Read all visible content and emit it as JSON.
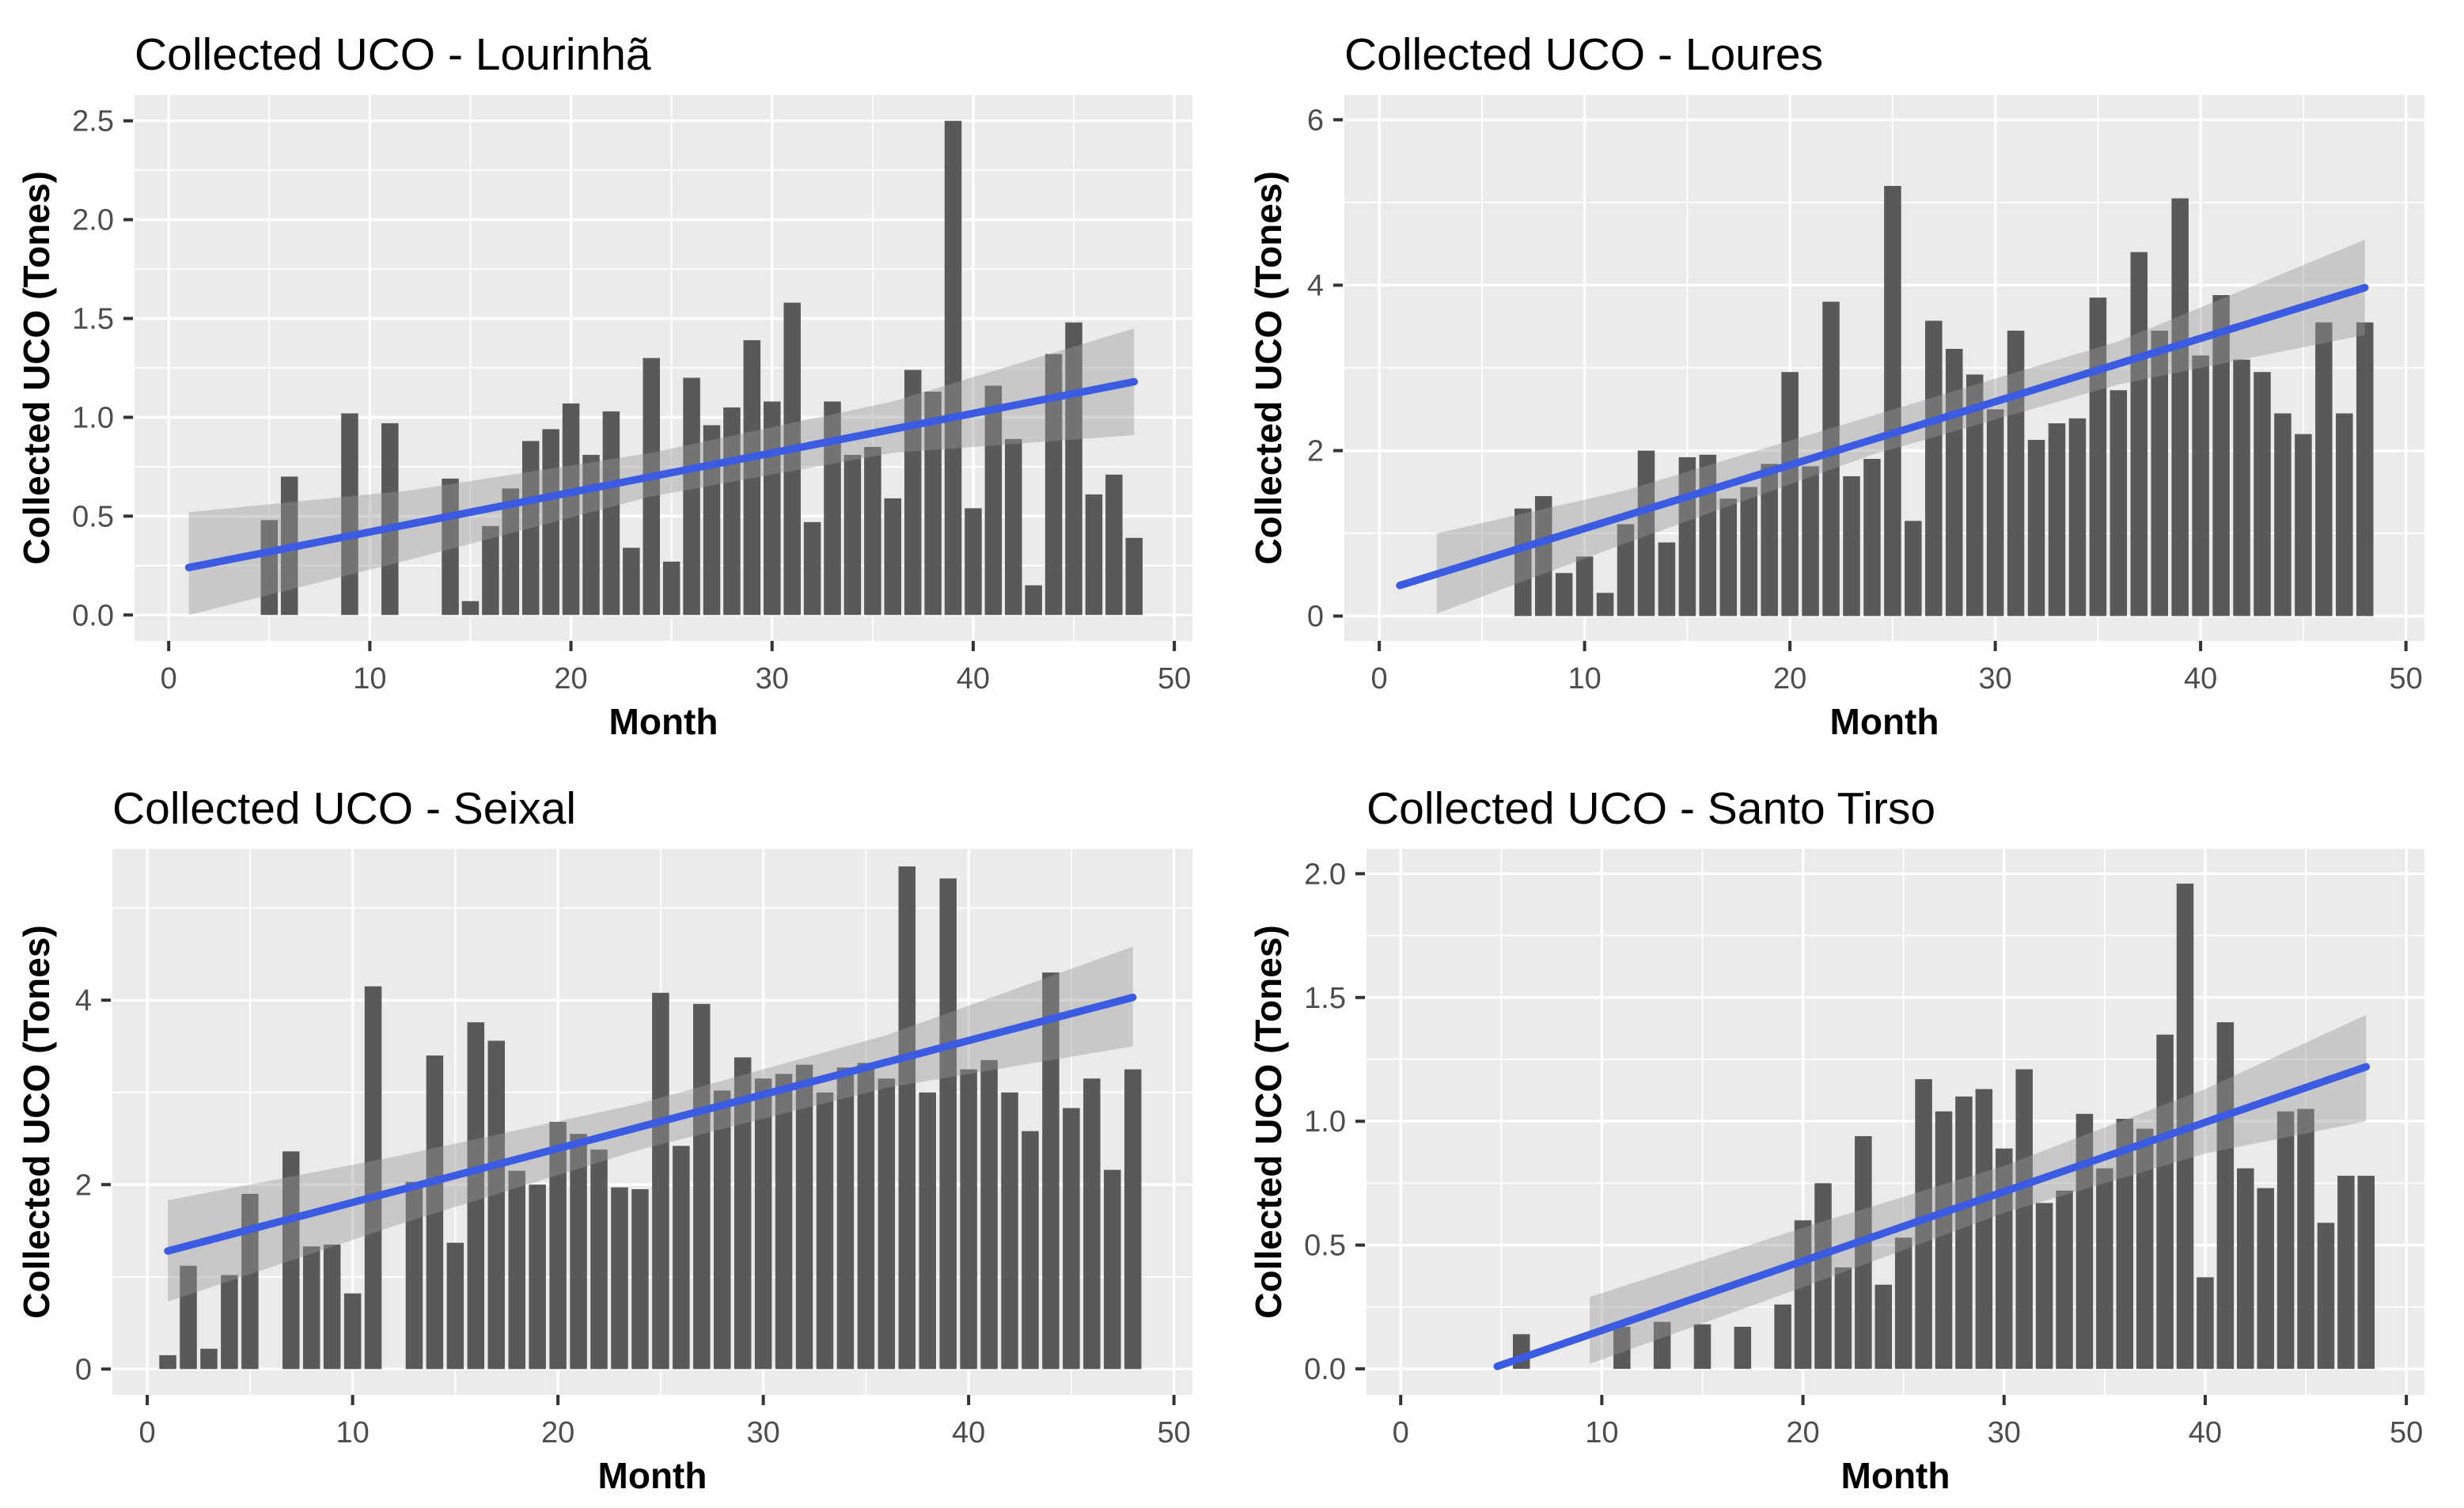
{
  "page": {
    "background": "#FFFFFF",
    "layout": "2x2 grid of ggplot-style bar charts with linear trend and confidence band"
  },
  "styles": {
    "panel_bg": "#EBEBEB",
    "grid_color": "#FFFFFF",
    "bar_color": "#595959",
    "trend_color": "#3A5BE2",
    "band_color": "#999999",
    "band_opacity": 0.42,
    "tick_label_color": "#4D4D4D",
    "tick_mark_color": "#333333",
    "title_color": "#000000"
  },
  "chart_data": [
    {
      "type": "bar",
      "title": "Collected UCO - Lourinhã",
      "xlabel": "Month",
      "ylabel": "Collected UCO (Tones)",
      "x": [
        1,
        2,
        3,
        4,
        5,
        6,
        7,
        8,
        9,
        10,
        11,
        12,
        13,
        14,
        15,
        16,
        17,
        18,
        19,
        20,
        21,
        22,
        23,
        24,
        25,
        26,
        27,
        28,
        29,
        30,
        31,
        32,
        33,
        34,
        35,
        36,
        37,
        38,
        39,
        40,
        41,
        42,
        43,
        44,
        45,
        46,
        47,
        48
      ],
      "values": [
        0,
        0,
        0,
        0,
        0.48,
        0.7,
        0,
        0,
        1.02,
        0,
        0.97,
        0,
        0,
        0.69,
        0.07,
        0.45,
        0.64,
        0.88,
        0.94,
        1.07,
        0.81,
        1.03,
        0.34,
        1.3,
        0.27,
        1.2,
        0.96,
        1.05,
        1.39,
        1.08,
        1.58,
        0.47,
        1.08,
        0.81,
        0.85,
        0.59,
        1.24,
        1.13,
        2.5,
        0.54,
        1.16,
        0.89,
        0.15,
        1.32,
        1.48,
        0.61,
        0.71,
        0.39
      ],
      "trend": [
        [
          1,
          0.24
        ],
        [
          48,
          1.18
        ]
      ],
      "band": [
        [
          1,
          0.0,
          0.52
        ],
        [
          12,
          0.28,
          0.63
        ],
        [
          24,
          0.6,
          0.82
        ],
        [
          36,
          0.82,
          1.08
        ],
        [
          48,
          0.91,
          1.45
        ]
      ],
      "xlim": [
        -1.7,
        50.9
      ],
      "ylim": [
        -0.131,
        2.631
      ],
      "x_ticks": [
        0,
        10,
        20,
        30,
        40,
        50
      ],
      "x_tick_labels": [
        "0",
        "10",
        "20",
        "30",
        "40",
        "50"
      ],
      "x_minor": [
        5,
        15,
        25,
        35,
        45
      ],
      "y_ticks": [
        0,
        0.5,
        1,
        1.5,
        2,
        2.5
      ],
      "y_tick_labels": [
        "0.0",
        "0.5",
        "1.0",
        "1.5",
        "2.0",
        "2.5"
      ],
      "y_minor": [
        0.25,
        0.75,
        1.25,
        1.75,
        2.25
      ],
      "grid": true,
      "legend": "none"
    },
    {
      "type": "bar",
      "title": "Collected UCO - Loures",
      "xlabel": "Month",
      "ylabel": "Collected UCO (Tones)",
      "x": [
        1,
        2,
        3,
        4,
        5,
        6,
        7,
        8,
        9,
        10,
        11,
        12,
        13,
        14,
        15,
        16,
        17,
        18,
        19,
        20,
        21,
        22,
        23,
        24,
        25,
        26,
        27,
        28,
        29,
        30,
        31,
        32,
        33,
        34,
        35,
        36,
        37,
        38,
        39,
        40,
        41,
        42,
        43,
        44,
        45,
        46,
        47,
        48
      ],
      "values": [
        0,
        0,
        0,
        0,
        0,
        0,
        1.3,
        1.45,
        0.52,
        0.72,
        0.28,
        1.11,
        2.0,
        0.89,
        1.92,
        1.95,
        1.42,
        1.56,
        1.84,
        2.95,
        1.81,
        3.8,
        1.69,
        1.9,
        5.2,
        1.15,
        3.57,
        3.23,
        2.92,
        2.5,
        3.45,
        2.13,
        2.33,
        2.39,
        3.85,
        2.73,
        4.4,
        3.45,
        5.05,
        3.15,
        3.88,
        3.1,
        2.95,
        2.45,
        2.2,
        3.55,
        2.45,
        3.55
      ],
      "trend": [
        [
          1,
          0.37
        ],
        [
          48,
          3.97
        ]
      ],
      "band": [
        [
          2.8,
          0.03,
          1.0
        ],
        [
          12,
          0.88,
          1.52
        ],
        [
          24,
          1.95,
          2.42
        ],
        [
          36,
          2.8,
          3.32
        ],
        [
          48,
          3.4,
          4.55
        ]
      ],
      "xlim": [
        -1.7,
        50.9
      ],
      "ylim": [
        -0.3,
        6.3
      ],
      "x_ticks": [
        0,
        10,
        20,
        30,
        40,
        50
      ],
      "x_tick_labels": [
        "0",
        "10",
        "20",
        "30",
        "40",
        "50"
      ],
      "x_minor": [
        5,
        15,
        25,
        35,
        45
      ],
      "y_ticks": [
        0,
        2,
        4,
        6
      ],
      "y_tick_labels": [
        "0",
        "2",
        "4",
        "6"
      ],
      "y_minor": [
        1,
        3,
        5
      ],
      "grid": true,
      "legend": "none"
    },
    {
      "type": "bar",
      "title": "Collected UCO - Seixal",
      "xlabel": "Month",
      "ylabel": "Collected UCO (Tones)",
      "x": [
        1,
        2,
        3,
        4,
        5,
        6,
        7,
        8,
        9,
        10,
        11,
        12,
        13,
        14,
        15,
        16,
        17,
        18,
        19,
        20,
        21,
        22,
        23,
        24,
        25,
        26,
        27,
        28,
        29,
        30,
        31,
        32,
        33,
        34,
        35,
        36,
        37,
        38,
        39,
        40,
        41,
        42,
        43,
        44,
        45,
        46,
        47,
        48
      ],
      "values": [
        0.15,
        1.12,
        0.22,
        1.02,
        1.9,
        0,
        2.36,
        1.33,
        1.35,
        0.82,
        4.15,
        0,
        2.03,
        3.4,
        1.37,
        3.76,
        3.56,
        2.15,
        2.0,
        2.68,
        2.55,
        2.38,
        1.97,
        1.95,
        4.08,
        2.42,
        3.96,
        3.02,
        3.38,
        3.15,
        3.2,
        3.3,
        3.0,
        3.27,
        3.32,
        3.15,
        5.45,
        3.0,
        5.32,
        3.25,
        3.35,
        3.0,
        2.58,
        4.3,
        2.83,
        3.15,
        2.16,
        3.25
      ],
      "trend": [
        [
          1,
          1.28
        ],
        [
          48,
          4.03
        ]
      ],
      "band": [
        [
          1,
          0.73,
          1.83
        ],
        [
          12,
          1.55,
          2.3
        ],
        [
          24,
          2.38,
          2.88
        ],
        [
          36,
          3.05,
          3.62
        ],
        [
          48,
          3.5,
          4.58
        ]
      ],
      "xlim": [
        -1.7,
        50.9
      ],
      "ylim": [
        -0.28,
        5.64
      ],
      "x_ticks": [
        0,
        10,
        20,
        30,
        40,
        50
      ],
      "x_tick_labels": [
        "0",
        "10",
        "20",
        "30",
        "40",
        "50"
      ],
      "x_minor": [
        5,
        15,
        25,
        35,
        45
      ],
      "y_ticks": [
        0,
        2,
        4
      ],
      "y_tick_labels": [
        "0",
        "2",
        "4"
      ],
      "y_minor": [
        1,
        3,
        5
      ],
      "grid": true,
      "legend": "none"
    },
    {
      "type": "bar",
      "title": "Collected UCO - Santo Tirso",
      "xlabel": "Month",
      "ylabel": "Collected UCO (Tones)",
      "x": [
        1,
        2,
        3,
        4,
        5,
        6,
        7,
        8,
        9,
        10,
        11,
        12,
        13,
        14,
        15,
        16,
        17,
        18,
        19,
        20,
        21,
        22,
        23,
        24,
        25,
        26,
        27,
        28,
        29,
        30,
        31,
        32,
        33,
        34,
        35,
        36,
        37,
        38,
        39,
        40,
        41,
        42,
        43,
        44,
        45,
        46,
        47,
        48
      ],
      "values": [
        0,
        0,
        0,
        0,
        0,
        0.14,
        0,
        0,
        0,
        0,
        0.17,
        0,
        0.19,
        0,
        0.18,
        0,
        0.17,
        0,
        0.26,
        0.6,
        0.75,
        0.41,
        0.94,
        0.34,
        0.53,
        1.17,
        1.04,
        1.1,
        1.13,
        0.89,
        1.21,
        0.67,
        0.72,
        1.03,
        0.81,
        1.01,
        0.97,
        1.35,
        1.96,
        0.37,
        1.4,
        0.81,
        0.73,
        1.04,
        1.05,
        0.59,
        0.78,
        0.78
      ],
      "trend": [
        [
          4.8,
          0.01
        ],
        [
          48,
          1.22
        ]
      ],
      "band": [
        [
          9.4,
          0.02,
          0.29
        ],
        [
          20,
          0.33,
          0.57
        ],
        [
          30,
          0.63,
          0.82
        ],
        [
          40,
          0.87,
          1.13
        ],
        [
          48,
          1.0,
          1.43
        ]
      ],
      "xlim": [
        -1.7,
        50.9
      ],
      "ylim": [
        -0.105,
        2.1
      ],
      "x_ticks": [
        0,
        10,
        20,
        30,
        40,
        50
      ],
      "x_tick_labels": [
        "0",
        "10",
        "20",
        "30",
        "40",
        "50"
      ],
      "x_minor": [
        5,
        15,
        25,
        35,
        45
      ],
      "y_ticks": [
        0,
        0.5,
        1,
        1.5,
        2
      ],
      "y_tick_labels": [
        "0.0",
        "0.5",
        "1.0",
        "1.5",
        "2.0"
      ],
      "y_minor": [
        0.25,
        0.75,
        1.25,
        1.75
      ],
      "grid": true,
      "legend": "none"
    }
  ]
}
